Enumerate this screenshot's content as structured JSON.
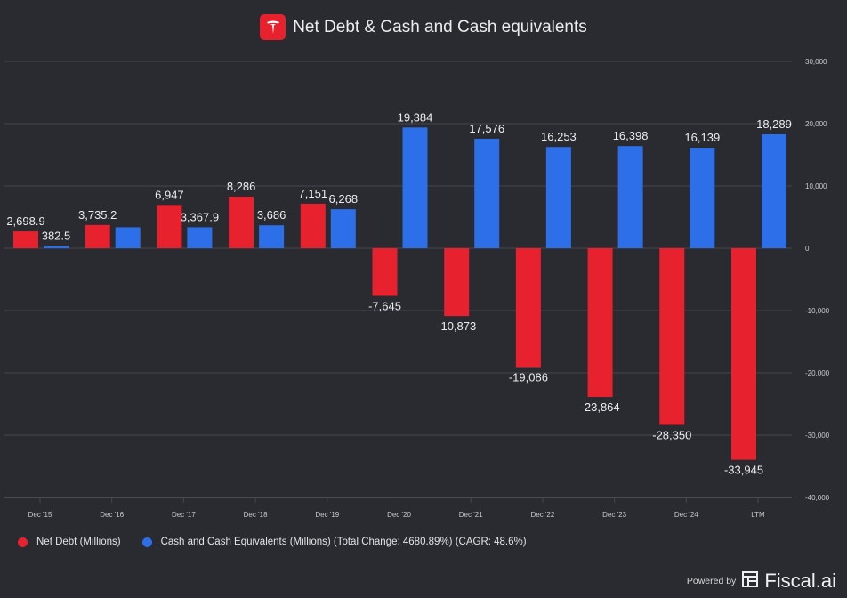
{
  "header": {
    "title": "Net Debt & Cash and Cash equivalents",
    "logo_icon": "tesla-logo-icon"
  },
  "chart_data": {
    "type": "bar",
    "title": "Net Debt & Cash and Cash equivalents",
    "categories": [
      "Dec '15",
      "Dec '16",
      "Dec '17",
      "Dec '18",
      "Dec '19",
      "Dec '20",
      "Dec '21",
      "Dec '22",
      "Dec '23",
      "Dec '24",
      "LTM"
    ],
    "series": [
      {
        "name": "Net Debt (Millions)",
        "color": "#e8212e",
        "values": [
          2698.9,
          3735.2,
          6947,
          8286,
          7151,
          -7645,
          -10873,
          -19086,
          -23864,
          -28350,
          -33945
        ],
        "labels": [
          "2,698.9",
          "3,735.2",
          "6,947",
          "8,286",
          "7,151",
          "-7,645",
          "-10,873",
          "-19,086",
          "-23,864",
          "-28,350",
          "-33,945"
        ]
      },
      {
        "name": "Cash and Cash Equivalents (Millions)",
        "color": "#2d6fe8",
        "values": [
          382.5,
          3367.9,
          3367.9,
          3686,
          6268,
          19384,
          17576,
          16253,
          16398,
          16139,
          18289
        ],
        "labels": [
          "382.5",
          "",
          "3,367.9",
          "3,686",
          "6,268",
          "19,384",
          "17,576",
          "16,253",
          "16,398",
          "16,139",
          "18,289"
        ]
      }
    ],
    "ylim": [
      -40000,
      30000
    ],
    "yticks": [
      30000,
      20000,
      10000,
      0,
      -10000,
      -20000,
      -30000,
      -40000
    ],
    "ytick_labels": [
      "30,000",
      "20,000",
      "10,000",
      "0",
      "-10,000",
      "-20,000",
      "-30,000",
      "-40,000"
    ],
    "grid": true,
    "legend_position": "bottom-left"
  },
  "legend": {
    "items": [
      {
        "label": "Net Debt (Millions)",
        "color": "#e8212e"
      },
      {
        "label": "Cash and Cash Equivalents (Millions) (Total Change: 4680.89%) (CAGR: 48.6%)",
        "color": "#2d6fe8"
      }
    ]
  },
  "footer": {
    "powered_by": "Powered by",
    "brand": "Fiscal.ai",
    "brand_icon": "fiscal-logo-icon"
  }
}
